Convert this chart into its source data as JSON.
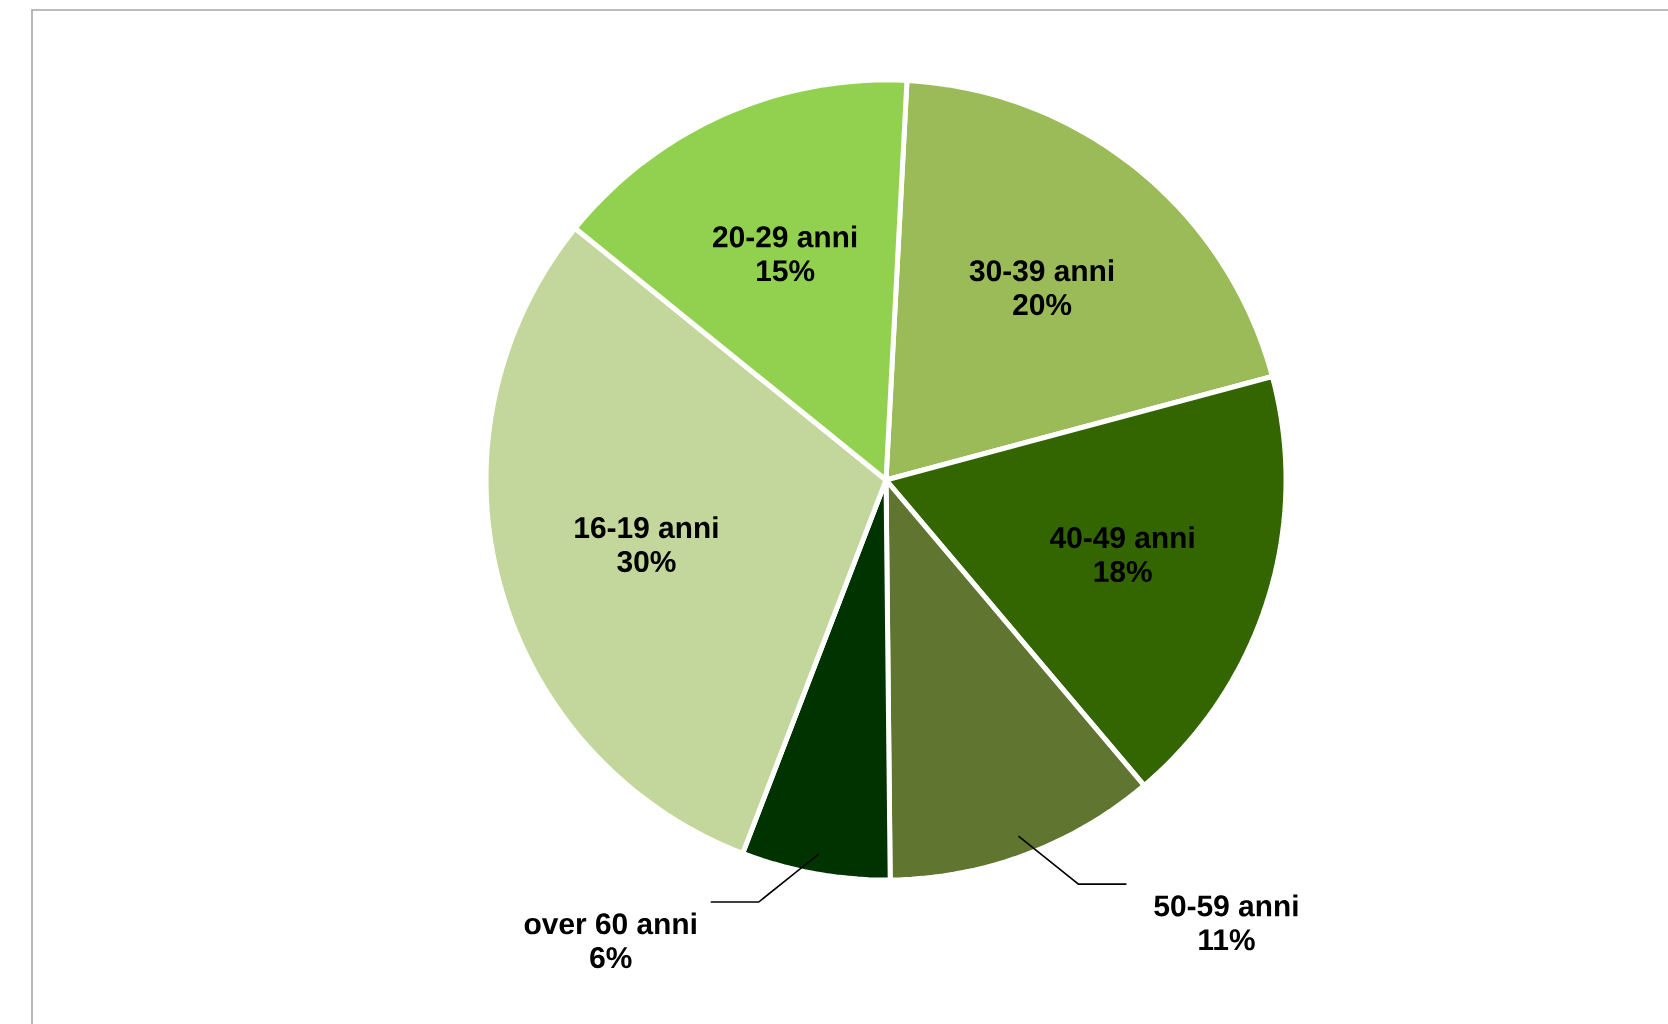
{
  "chart_data": {
    "type": "pie",
    "categories": [
      "30-39 anni",
      "40-49 anni",
      "50-59 anni",
      "over 60 anni",
      "16-19 anni",
      "20-29 anni"
    ],
    "values": [
      20,
      18,
      11,
      6,
      30,
      15
    ],
    "value_labels": [
      "20%",
      "18%",
      "11%",
      "6%",
      "30%",
      "15%"
    ],
    "colors": [
      "#9bbb59",
      "#336600",
      "#5f7530",
      "#003300",
      "#c3d69b",
      "#92d050"
    ]
  }
}
